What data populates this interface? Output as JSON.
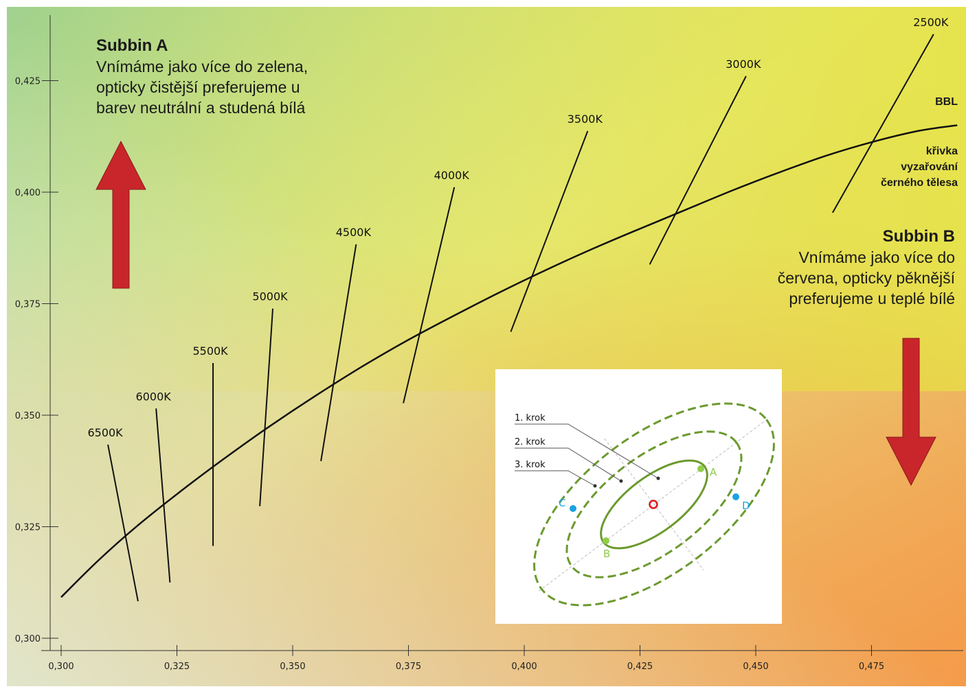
{
  "chart_data": {
    "type": "line",
    "title": "",
    "xlabel": "",
    "ylabel": "",
    "xlim": [
      0.2975,
      0.4945
    ],
    "ylim": [
      0.2985,
      0.436
    ],
    "x_ticks": [
      0.3,
      0.325,
      0.35,
      0.375,
      0.4,
      0.425,
      0.45,
      0.475
    ],
    "y_ticks": [
      0.3,
      0.325,
      0.35,
      0.375,
      0.4,
      0.425
    ],
    "x_tick_labels": [
      "0,300",
      "0,325",
      "0,350",
      "0,375",
      "0,400",
      "0,425",
      "0,450",
      "0,475"
    ],
    "y_tick_labels": [
      "0,300",
      "0,325",
      "0,350",
      "0,375",
      "0,400",
      "0,425"
    ],
    "grid": false,
    "bbl_curve": {
      "x": [
        0.3,
        0.308,
        0.316,
        0.325,
        0.335,
        0.345,
        0.355,
        0.365,
        0.375,
        0.385,
        0.395,
        0.405,
        0.415,
        0.425,
        0.435,
        0.445,
        0.455,
        0.465,
        0.475,
        0.485,
        0.4935
      ],
      "y": [
        0.3092,
        0.3174,
        0.3248,
        0.3323,
        0.3401,
        0.3475,
        0.3544,
        0.3609,
        0.3669,
        0.3724,
        0.3777,
        0.3827,
        0.3874,
        0.3918,
        0.3961,
        0.4004,
        0.4044,
        0.4081,
        0.4112,
        0.4137,
        0.415
      ]
    },
    "isotherms": [
      {
        "label": "6500K",
        "start": [
          0.3101,
          0.3434
        ],
        "end": [
          0.3166,
          0.3083
        ]
      },
      {
        "label": "6000K",
        "start": [
          0.3205,
          0.3515
        ],
        "end": [
          0.3235,
          0.3125
        ]
      },
      {
        "label": "5500K",
        "start": [
          0.3328,
          0.3617
        ],
        "end": [
          0.3328,
          0.3207
        ]
      },
      {
        "label": "5000K",
        "start": [
          0.3457,
          0.3739
        ],
        "end": [
          0.3429,
          0.3296
        ]
      },
      {
        "label": "4500K",
        "start": [
          0.3637,
          0.3883
        ],
        "end": [
          0.3561,
          0.3397
        ]
      },
      {
        "label": "4000K",
        "start": [
          0.3849,
          0.4011
        ],
        "end": [
          0.3739,
          0.3527
        ]
      },
      {
        "label": "3500K",
        "start": [
          0.4137,
          0.4137
        ],
        "end": [
          0.3971,
          0.3687
        ]
      },
      {
        "label": "3000K",
        "start": [
          0.4479,
          0.426
        ],
        "end": [
          0.4271,
          0.3838
        ]
      },
      {
        "label": "2500K",
        "start": [
          0.4884,
          0.4354
        ],
        "end": [
          0.4666,
          0.3954
        ]
      }
    ],
    "labels": {
      "bbl": "BBL",
      "bbl_desc_lines": [
        "křivka",
        "vyzařování",
        "černého tělesa"
      ]
    },
    "annotations": {
      "subbin_a": {
        "title": "Subbin A",
        "lines": [
          "Vnímáme jako více do zelena,",
          "opticky čistější preferujeme u",
          "barev neutrální a studená bílá"
        ]
      },
      "subbin_b": {
        "title": "Subbin B",
        "lines": [
          "Vnímáme jako více do",
          "červena, opticky pěknější",
          "preferujeme u teplé bílé"
        ]
      }
    },
    "arrows": {
      "up_color": "#c8262a",
      "down_color": "#c8262a"
    },
    "inset": {
      "steps": [
        "1. krok",
        "2. krok",
        "3. krok"
      ],
      "points": {
        "A": "A",
        "B": "B",
        "C": "C",
        "D": "D"
      },
      "ellipse_color": "#6b9a2e",
      "point_green": "#8fce4a",
      "point_blue": "#1aa3e0",
      "center_color": "#e0151b"
    },
    "colors": {
      "bg_top_left": "#9fd18e",
      "bg_top_right": "#e6e44a",
      "bg_bottom_left": "#dfead6",
      "bg_bottom_right": "#f49b4a",
      "axis": "#333333"
    }
  }
}
